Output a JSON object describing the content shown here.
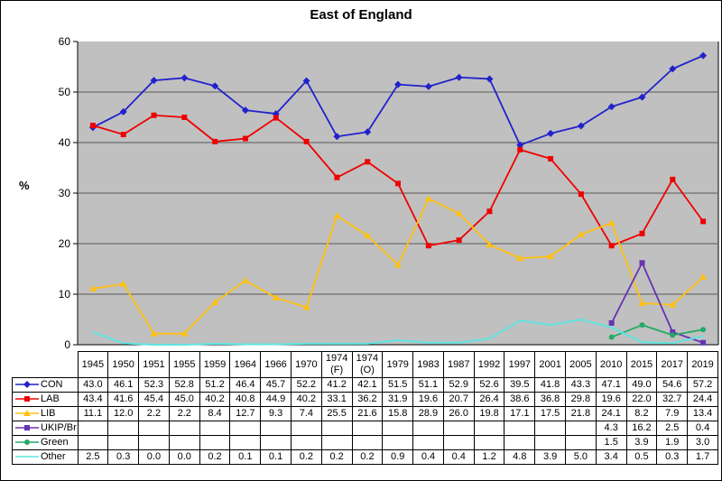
{
  "title": "East of England",
  "y_axis_label": "%",
  "chart_data": {
    "type": "line",
    "title": "East of England",
    "xlabel": "",
    "ylabel": "%",
    "ylim": [
      0,
      60
    ],
    "yticks": [
      0,
      10,
      20,
      30,
      40,
      50,
      60
    ],
    "grid": "horizontal",
    "plot_background": "#C0C0C0",
    "gridline_color": "#595959",
    "legend_position": "table-left",
    "categories": [
      "1945",
      "1950",
      "1951",
      "1955",
      "1959",
      "1964",
      "1966",
      "1970",
      "1974 (F)",
      "1974 (O)",
      "1979",
      "1983",
      "1987",
      "1992",
      "1997",
      "2001",
      "2005",
      "2010",
      "2015",
      "2017",
      "2019"
    ],
    "series": [
      {
        "name": "CON",
        "color": "#2222CC",
        "marker": "diamond",
        "values": [
          43.0,
          46.1,
          52.3,
          52.8,
          51.2,
          46.4,
          45.7,
          52.2,
          41.2,
          42.1,
          51.5,
          51.1,
          52.9,
          52.6,
          39.5,
          41.8,
          43.3,
          47.1,
          49.0,
          54.6,
          57.2
        ]
      },
      {
        "name": "LAB",
        "color": "#EE0000",
        "marker": "square",
        "values": [
          43.4,
          41.6,
          45.4,
          45.0,
          40.2,
          40.8,
          44.9,
          40.2,
          33.1,
          36.2,
          31.9,
          19.6,
          20.7,
          26.4,
          38.6,
          36.8,
          29.8,
          19.6,
          22.0,
          32.7,
          24.4
        ]
      },
      {
        "name": "LIB",
        "color": "#FFC010",
        "marker": "triangle",
        "values": [
          11.1,
          12.0,
          2.2,
          2.2,
          8.4,
          12.7,
          9.3,
          7.4,
          25.5,
          21.6,
          15.8,
          28.9,
          26.0,
          19.8,
          17.1,
          17.5,
          21.8,
          24.1,
          8.2,
          7.9,
          13.4
        ]
      },
      {
        "name": "UKIP/Br",
        "color": "#6633B2",
        "marker": "square",
        "values": [
          null,
          null,
          null,
          null,
          null,
          null,
          null,
          null,
          null,
          null,
          null,
          null,
          null,
          null,
          null,
          null,
          null,
          4.3,
          16.2,
          2.5,
          0.4
        ]
      },
      {
        "name": "Green",
        "color": "#22AA66",
        "marker": "circle",
        "values": [
          null,
          null,
          null,
          null,
          null,
          null,
          null,
          null,
          null,
          null,
          null,
          null,
          null,
          null,
          null,
          null,
          null,
          1.5,
          3.9,
          1.9,
          3.0
        ]
      },
      {
        "name": "Other",
        "color": "#5FE3DF",
        "marker": "none",
        "values": [
          2.5,
          0.3,
          0.0,
          0.0,
          0.2,
          0.1,
          0.1,
          0.2,
          0.2,
          0.2,
          0.9,
          0.4,
          0.4,
          1.2,
          4.8,
          3.9,
          5.0,
          3.4,
          0.5,
          0.3,
          1.7
        ]
      }
    ]
  }
}
